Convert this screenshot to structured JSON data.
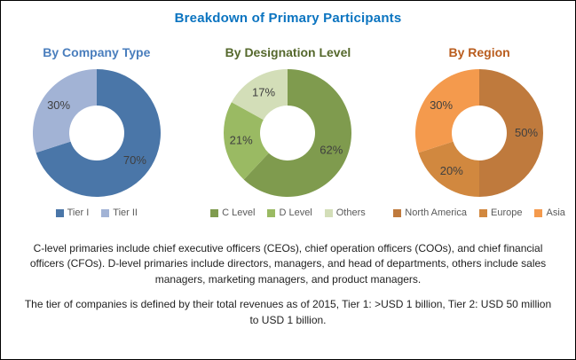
{
  "title": "Breakdown of Primary Participants",
  "colors": {
    "title": "#0b74c0",
    "body_text": "#1f1f1f",
    "legend_text": "#595959",
    "data_label": "#3f3f3f"
  },
  "chart_data": [
    {
      "type": "pie",
      "subtype": "donut",
      "title": "By Company Type",
      "title_color": "#4a7ebd",
      "labels": [
        "Tier I",
        "Tier II"
      ],
      "values": [
        70,
        30
      ],
      "data_labels": [
        "70%",
        "30%"
      ],
      "colors": [
        "#4a76a8",
        "#a2b3d5"
      ],
      "start_angle_deg": 0,
      "direction": "clockwise",
      "legend_position": "bottom"
    },
    {
      "type": "pie",
      "subtype": "donut",
      "title": "By Designation Level",
      "title_color": "#55682c",
      "labels": [
        "C Level",
        "D Level",
        "Others"
      ],
      "values": [
        62,
        21,
        17
      ],
      "data_labels": [
        "62%",
        "21%",
        "17%"
      ],
      "colors": [
        "#7f9b4e",
        "#9aba63",
        "#d3deb8"
      ],
      "start_angle_deg": 0,
      "direction": "clockwise",
      "legend_position": "bottom"
    },
    {
      "type": "pie",
      "subtype": "donut",
      "title": "By Region",
      "title_color": "#b95c1d",
      "labels": [
        "North America",
        "Europe",
        "Asia"
      ],
      "values": [
        50,
        20,
        30
      ],
      "data_labels": [
        "50%",
        "20%",
        "30%"
      ],
      "colors": [
        "#bf7a3d",
        "#d1883f",
        "#f49a4d"
      ],
      "start_angle_deg": 0,
      "direction": "clockwise",
      "legend_position": "bottom"
    }
  ],
  "notes": [
    "C-level primaries include chief executive officers (CEOs), chief operation officers (COOs), and chief financial officers (CFOs). D-level primaries include directors, managers, and head of departments, others include sales managers, marketing managers, and product managers.",
    "The tier of companies is defined by their total revenues as of 2015, Tier 1: >USD 1 billion, Tier 2: USD 50 million to USD 1 billion."
  ]
}
